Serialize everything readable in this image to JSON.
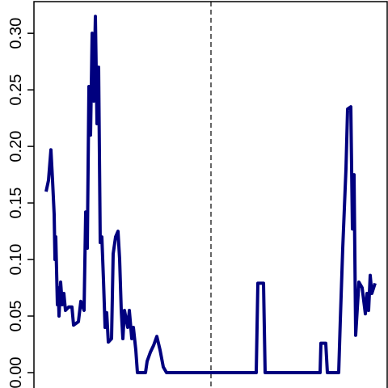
{
  "chart_data": {
    "type": "line",
    "x": [
      0,
      3,
      6,
      8,
      10,
      11,
      12,
      14,
      15,
      16,
      18,
      20,
      22,
      24,
      28,
      32,
      34,
      40,
      43,
      47,
      49,
      51,
      53,
      55,
      57,
      59,
      61,
      63,
      65,
      67,
      69,
      71,
      73,
      75,
      77,
      81,
      83,
      86,
      89,
      91,
      93,
      95,
      97,
      101,
      103,
      106,
      108,
      111,
      113,
      123,
      125,
      129,
      133,
      137,
      141,
      145,
      149,
      260,
      262,
      269,
      271,
      339,
      340,
      346,
      348,
      362,
      364,
      367,
      371,
      373,
      377,
      379,
      381,
      383,
      387,
      391,
      395,
      397,
      399,
      401,
      403,
      407
    ],
    "series": [
      {
        "color": "#00007f",
        "values": [
          0.16,
          0.17,
          0.197,
          0.17,
          0.14,
          0.1,
          0.12,
          0.06,
          0.075,
          0.05,
          0.08,
          0.06,
          0.07,
          0.055,
          0.058,
          0.058,
          0.042,
          0.045,
          0.063,
          0.055,
          0.142,
          0.11,
          0.253,
          0.21,
          0.3,
          0.24,
          0.315,
          0.22,
          0.27,
          0.115,
          0.12,
          0.082,
          0.04,
          0.053,
          0.027,
          0.03,
          0.105,
          0.12,
          0.125,
          0.1,
          0.055,
          0.03,
          0.055,
          0.04,
          0.055,
          0.03,
          0.04,
          0.02,
          0,
          0,
          0.01,
          0.018,
          0.024,
          0.032,
          0.02,
          0.005,
          0,
          0,
          0.079,
          0.079,
          0,
          0,
          0.026,
          0.026,
          0,
          0,
          0.046,
          0.11,
          0.18,
          0.233,
          0.235,
          0.127,
          0.175,
          0.033,
          0.08,
          0.075,
          0.052,
          0.07,
          0.055,
          0.086,
          0.07,
          0.079
        ]
      }
    ],
    "xlim": [
      -15,
      423
    ],
    "ylim": [
      -0.0136,
      0.328
    ],
    "yticks": [
      {
        "value": 0,
        "label": "0.00"
      },
      {
        "value": 0.05,
        "label": "0.05"
      },
      {
        "value": 0.1,
        "label": "0.10"
      },
      {
        "value": 0.15,
        "label": "0.15"
      },
      {
        "value": 0.2,
        "label": "0.20"
      },
      {
        "value": 0.25,
        "label": "0.25"
      },
      {
        "value": 0.3,
        "label": "0.30"
      }
    ],
    "vline": 204
  }
}
